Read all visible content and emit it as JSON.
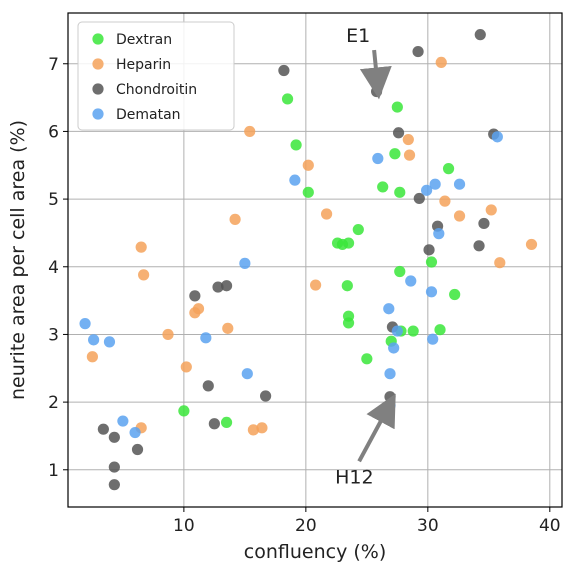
{
  "chart_data": {
    "type": "scatter",
    "xlabel": "confluency (%)",
    "ylabel": "neurite area per cell area (%)",
    "xlim": [
      0.5,
      41
    ],
    "ylim": [
      0.45,
      7.75
    ],
    "xticks": [
      10,
      20,
      30,
      40
    ],
    "yticks": [
      1,
      2,
      3,
      4,
      5,
      6,
      7
    ],
    "grid": true,
    "legend_position": "top-left",
    "series": [
      {
        "name": "Dextran",
        "color": "#39e639",
        "points": [
          [
            10.0,
            1.87
          ],
          [
            13.5,
            1.7
          ],
          [
            18.5,
            6.48
          ],
          [
            19.2,
            5.8
          ],
          [
            20.2,
            5.1
          ],
          [
            22.6,
            4.35
          ],
          [
            23.0,
            4.33
          ],
          [
            23.5,
            4.35
          ],
          [
            23.4,
            3.72
          ],
          [
            23.5,
            3.27
          ],
          [
            23.5,
            3.17
          ],
          [
            24.3,
            4.55
          ],
          [
            25.0,
            2.64
          ],
          [
            26.3,
            5.18
          ],
          [
            27.3,
            5.67
          ],
          [
            27.5,
            6.36
          ],
          [
            27.7,
            5.1
          ],
          [
            27.7,
            3.93
          ],
          [
            27.8,
            3.05
          ],
          [
            27.0,
            2.9
          ],
          [
            28.8,
            3.05
          ],
          [
            30.3,
            4.07
          ],
          [
            31.0,
            3.07
          ],
          [
            31.7,
            5.45
          ],
          [
            32.2,
            3.59
          ]
        ]
      },
      {
        "name": "Heparin",
        "color": "#f5a25a",
        "points": [
          [
            2.5,
            2.67
          ],
          [
            6.5,
            4.29
          ],
          [
            6.7,
            3.88
          ],
          [
            6.5,
            1.62
          ],
          [
            8.7,
            3.0
          ],
          [
            10.2,
            2.52
          ],
          [
            10.9,
            3.32
          ],
          [
            11.2,
            3.38
          ],
          [
            13.6,
            3.09
          ],
          [
            14.2,
            4.7
          ],
          [
            15.4,
            6.0
          ],
          [
            15.7,
            1.59
          ],
          [
            16.4,
            1.62
          ],
          [
            20.2,
            5.5
          ],
          [
            20.8,
            3.73
          ],
          [
            21.7,
            4.78
          ],
          [
            28.4,
            5.88
          ],
          [
            28.5,
            5.65
          ],
          [
            31.1,
            7.02
          ],
          [
            31.4,
            4.97
          ],
          [
            32.6,
            4.75
          ],
          [
            35.2,
            4.84
          ],
          [
            35.9,
            4.06
          ],
          [
            38.5,
            4.33
          ]
        ]
      },
      {
        "name": "Chondroitin",
        "color": "#555555",
        "points": [
          [
            3.4,
            1.6
          ],
          [
            4.3,
            1.48
          ],
          [
            4.3,
            1.04
          ],
          [
            4.3,
            0.78
          ],
          [
            6.2,
            1.3
          ],
          [
            10.9,
            3.57
          ],
          [
            12.0,
            2.24
          ],
          [
            12.5,
            1.68
          ],
          [
            12.8,
            3.7
          ],
          [
            13.5,
            3.72
          ],
          [
            16.7,
            2.09
          ],
          [
            18.2,
            6.9
          ],
          [
            25.8,
            6.59
          ],
          [
            27.6,
            5.98
          ],
          [
            29.2,
            7.18
          ],
          [
            29.3,
            5.01
          ],
          [
            30.1,
            4.25
          ],
          [
            30.8,
            4.6
          ],
          [
            27.1,
            3.11
          ],
          [
            26.9,
            2.08
          ],
          [
            34.3,
            7.43
          ],
          [
            34.6,
            4.64
          ],
          [
            34.2,
            4.31
          ],
          [
            35.4,
            5.96
          ]
        ]
      },
      {
        "name": "Dematan",
        "color": "#5aa2f0",
        "points": [
          [
            1.9,
            3.16
          ],
          [
            2.6,
            2.92
          ],
          [
            3.9,
            2.89
          ],
          [
            5.0,
            1.72
          ],
          [
            6.0,
            1.55
          ],
          [
            11.8,
            2.95
          ],
          [
            15.0,
            4.05
          ],
          [
            15.2,
            2.42
          ],
          [
            19.1,
            5.28
          ],
          [
            25.9,
            5.6
          ],
          [
            26.8,
            3.38
          ],
          [
            26.9,
            2.42
          ],
          [
            26.9,
            1.95
          ],
          [
            27.2,
            2.8
          ],
          [
            27.5,
            3.05
          ],
          [
            28.6,
            3.79
          ],
          [
            29.9,
            5.13
          ],
          [
            30.3,
            3.63
          ],
          [
            30.4,
            2.93
          ],
          [
            30.6,
            5.22
          ],
          [
            30.9,
            4.49
          ],
          [
            32.6,
            5.22
          ],
          [
            35.7,
            5.92
          ]
        ]
      }
    ],
    "annotations": [
      {
        "text": "E1",
        "text_at": [
          23.3,
          7.32
        ],
        "arrow_to": [
          25.9,
          6.65
        ]
      },
      {
        "text": "H12",
        "text_at": [
          22.4,
          0.8
        ],
        "arrow_to": [
          26.9,
          1.97
        ]
      }
    ]
  }
}
